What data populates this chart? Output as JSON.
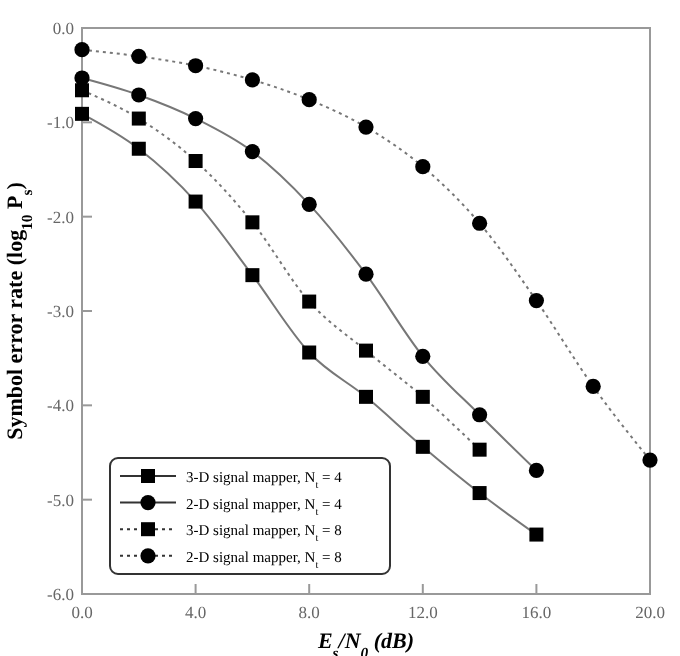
{
  "chart_data": {
    "type": "line",
    "xlabel": "E$_{s}$/N$_{0}$ (dB)",
    "ylabel": "Symbol error rate (log$_{10}$ P$_{s}$)",
    "xlim": [
      0,
      20
    ],
    "ylim": [
      -6,
      0
    ],
    "xticks": [
      {
        "value": 0,
        "label": "0.0"
      },
      {
        "value": 4,
        "label": "4.0"
      },
      {
        "value": 8,
        "label": "8.0"
      },
      {
        "value": 12,
        "label": "12.0"
      },
      {
        "value": 16,
        "label": "16.0"
      },
      {
        "value": 20,
        "label": "20.0"
      }
    ],
    "yticks": [
      {
        "value": 0,
        "label": "0.0"
      },
      {
        "value": -1,
        "label": "-1.0"
      },
      {
        "value": -2,
        "label": "-2.0"
      },
      {
        "value": -3,
        "label": "-3.0"
      },
      {
        "value": -4,
        "label": "-4.0"
      },
      {
        "value": -5,
        "label": "-5.0"
      },
      {
        "value": -6,
        "label": "-6.0"
      }
    ],
    "grid": false,
    "legend": "bottom left",
    "series": [
      {
        "name": "3-D signal mapper, N$_{t}$ = 4",
        "color": "#000000",
        "marker": "square",
        "line_style": "solid",
        "x": [
          0,
          2,
          4,
          6,
          8,
          10,
          12,
          14,
          16
        ],
        "values": [
          -0.91,
          -1.28,
          -1.84,
          -2.62,
          -3.44,
          -3.91,
          -4.44,
          -4.93,
          -5.37
        ]
      },
      {
        "name": "2-D signal mapper, N$_{t}$ = 4",
        "color": "#000000",
        "marker": "circle",
        "line_style": "solid",
        "x": [
          0,
          2,
          4,
          6,
          8,
          10,
          12,
          14,
          16
        ],
        "values": [
          -0.53,
          -0.71,
          -0.96,
          -1.31,
          -1.87,
          -2.61,
          -3.48,
          -4.1,
          -4.69
        ]
      },
      {
        "name": "3-D signal mapper, N$_{t}$ = 8",
        "color": "#000000",
        "marker": "square",
        "line_style": "dotted",
        "x": [
          0,
          2,
          4,
          6,
          8,
          10,
          12,
          14
        ],
        "values": [
          -0.66,
          -0.96,
          -1.41,
          -2.06,
          -2.9,
          -3.42,
          -3.91,
          -4.47
        ]
      },
      {
        "name": "2-D signal mapper, N$_{t}$ = 8",
        "color": "#000000",
        "marker": "circle",
        "line_style": "dotted",
        "x": [
          0,
          2,
          4,
          6,
          8,
          10,
          12,
          14,
          16,
          18,
          20
        ],
        "values": [
          -0.23,
          -0.3,
          -0.4,
          -0.55,
          -0.76,
          -1.05,
          -1.47,
          -2.07,
          -2.89,
          -3.8,
          -4.58
        ]
      }
    ]
  }
}
